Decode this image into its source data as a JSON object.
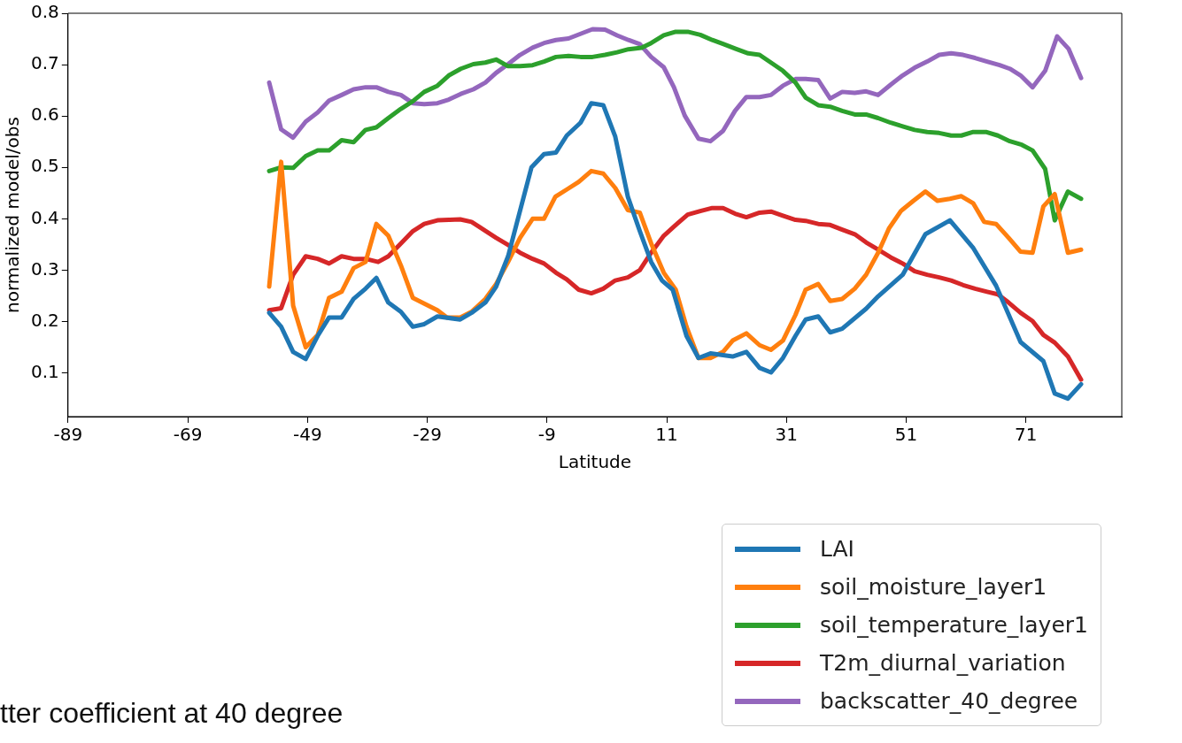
{
  "chart_data": {
    "type": "line",
    "xlabel": "Latitude",
    "ylabel": "normalized model/obs",
    "xlim": [
      -89,
      87
    ],
    "ylim": [
      0.015,
      0.8
    ],
    "xticks": [
      -89,
      -69,
      -49,
      -29,
      -9,
      11,
      31,
      51,
      71
    ],
    "yticks": [
      0.1,
      0.2,
      0.3,
      0.4,
      0.5,
      0.6,
      0.7,
      0.8
    ],
    "grid": false,
    "legend": "bottom right",
    "marker": "none",
    "line_style": "solid",
    "annotations": [
      "tter coefficient at 40 degree"
    ],
    "series": [
      {
        "name": "LAI",
        "color": "#1f77b4",
        "x": [
          -55.4,
          -53.4,
          -51.4,
          -49.3,
          -47.3,
          -45.4,
          -43.3,
          -41.3,
          -39.3,
          -37.5,
          -35.5,
          -33.4,
          -31.4,
          -29.5,
          -27.3,
          -23.5,
          -21.6,
          -19.3,
          -17.5,
          -15.5,
          -11.6,
          -9.5,
          -7.5,
          -5.7,
          -3.4,
          -1.6,
          0.4,
          2.4,
          4.5,
          6.5,
          8.4,
          10.2,
          12,
          14.3,
          16.3,
          18.3,
          22,
          24.3,
          26.5,
          28.4,
          30.4,
          32.5,
          34.2,
          36.3,
          38.3,
          40.3,
          44.3,
          46.3,
          50.4,
          54.2,
          58.3,
          62.2,
          66,
          70.1,
          73.9,
          75.8,
          78,
          80.2
        ],
        "values": [
          0.217,
          0.19,
          0.141,
          0.127,
          0.172,
          0.208,
          0.208,
          0.244,
          0.264,
          0.285,
          0.237,
          0.219,
          0.19,
          0.195,
          0.21,
          0.204,
          0.217,
          0.237,
          0.268,
          0.327,
          0.5,
          0.526,
          0.529,
          0.562,
          0.587,
          0.625,
          0.621,
          0.56,
          0.443,
          0.376,
          0.316,
          0.28,
          0.262,
          0.172,
          0.129,
          0.138,
          0.132,
          0.141,
          0.11,
          0.101,
          0.129,
          0.172,
          0.204,
          0.21,
          0.179,
          0.186,
          0.225,
          0.249,
          0.291,
          0.37,
          0.397,
          0.343,
          0.27,
          0.16,
          0.123,
          0.06,
          0.05,
          0.078
        ]
      },
      {
        "name": "soil_moisture_layer1",
        "color": "#ff7f0e",
        "x": [
          -55.4,
          -53.4,
          -51.4,
          -49.3,
          -47.3,
          -45.4,
          -43.3,
          -41.3,
          -39.3,
          -37.5,
          -35.5,
          -33.4,
          -31.4,
          -29.5,
          -27.3,
          -25.7,
          -23.5,
          -21.6,
          -19.3,
          -17.5,
          -15.5,
          -13.5,
          -11.4,
          -9.5,
          -7.6,
          -5.7,
          -3.7,
          -1.6,
          0.4,
          2.4,
          4.5,
          6.5,
          8.4,
          10.5,
          12.5,
          14.3,
          16.3,
          18.3,
          20.4,
          22,
          24.3,
          26.5,
          28.4,
          30.4,
          32.5,
          34.2,
          36.3,
          38.3,
          40.3,
          42.4,
          44.3,
          46.3,
          48.1,
          50.1,
          52.2,
          54.2,
          56.2,
          58.3,
          60.2,
          62.2,
          64,
          66,
          68.1,
          70.1,
          72.1,
          73.9,
          75.8,
          78,
          80.2
        ],
        "values": [
          0.268,
          0.511,
          0.231,
          0.15,
          0.174,
          0.246,
          0.258,
          0.304,
          0.316,
          0.39,
          0.367,
          0.309,
          0.246,
          0.235,
          0.222,
          0.208,
          0.208,
          0.219,
          0.244,
          0.273,
          0.316,
          0.363,
          0.4,
          0.4,
          0.443,
          0.457,
          0.472,
          0.493,
          0.488,
          0.46,
          0.417,
          0.412,
          0.352,
          0.295,
          0.262,
          0.19,
          0.129,
          0.129,
          0.141,
          0.163,
          0.177,
          0.154,
          0.145,
          0.163,
          0.213,
          0.262,
          0.273,
          0.24,
          0.244,
          0.264,
          0.291,
          0.334,
          0.381,
          0.415,
          0.435,
          0.453,
          0.435,
          0.439,
          0.444,
          0.43,
          0.394,
          0.39,
          0.363,
          0.336,
          0.334,
          0.424,
          0.448,
          0.334,
          0.34
        ]
      },
      {
        "name": "soil_temperature_layer1",
        "color": "#2ca02c",
        "x": [
          -55.4,
          -53.4,
          -51.4,
          -49.3,
          -47.3,
          -45.4,
          -43.3,
          -41.3,
          -39.3,
          -37.5,
          -35.5,
          -33.4,
          -31.4,
          -29.5,
          -27.3,
          -25.4,
          -23.4,
          -21.3,
          -19.3,
          -17.5,
          -15.5,
          -13.5,
          -11.4,
          -9.5,
          -7.5,
          -5.4,
          -3.4,
          -1.4,
          0.7,
          2.7,
          4.6,
          6.8,
          8.4,
          10.5,
          12.5,
          14.5,
          16.6,
          18.6,
          20.5,
          22.5,
          24.6,
          26.5,
          28.4,
          30.4,
          32.5,
          34.2,
          36.3,
          38.3,
          40.3,
          42.4,
          44.3,
          46.3,
          48.4,
          50.4,
          52.4,
          54.5,
          56.5,
          58.5,
          60.2,
          62.2,
          64.3,
          66.3,
          68.3,
          70.3,
          72.1,
          74.2,
          75.8,
          78,
          80.2
        ],
        "values": [
          0.493,
          0.5,
          0.499,
          0.522,
          0.533,
          0.533,
          0.553,
          0.549,
          0.573,
          0.578,
          0.596,
          0.614,
          0.629,
          0.647,
          0.659,
          0.679,
          0.692,
          0.701,
          0.704,
          0.71,
          0.697,
          0.697,
          0.699,
          0.706,
          0.715,
          0.717,
          0.715,
          0.715,
          0.719,
          0.724,
          0.73,
          0.733,
          0.742,
          0.757,
          0.764,
          0.764,
          0.758,
          0.748,
          0.74,
          0.731,
          0.722,
          0.719,
          0.704,
          0.688,
          0.665,
          0.636,
          0.621,
          0.618,
          0.61,
          0.603,
          0.603,
          0.596,
          0.587,
          0.58,
          0.573,
          0.569,
          0.567,
          0.562,
          0.562,
          0.569,
          0.569,
          0.562,
          0.551,
          0.544,
          0.533,
          0.497,
          0.397,
          0.453,
          0.439
        ]
      },
      {
        "name": "T2m_diurnal_variation",
        "color": "#d62728",
        "x": [
          -55.4,
          -53.4,
          -51.4,
          -49.3,
          -47.3,
          -45.4,
          -43.3,
          -41.3,
          -39.3,
          -37.2,
          -35.5,
          -33.4,
          -31.4,
          -29.5,
          -27.3,
          -25.4,
          -23.5,
          -21.6,
          -19.6,
          -17.5,
          -15.5,
          -13.5,
          -11.4,
          -9.5,
          -7.5,
          -5.7,
          -3.7,
          -1.6,
          0.4,
          2.4,
          4.5,
          6.5,
          8.4,
          10.5,
          12.5,
          14.5,
          16.6,
          18.6,
          20.4,
          22.4,
          24.3,
          26.5,
          28.4,
          30.4,
          32.5,
          34.2,
          36.3,
          38.3,
          40.3,
          42.4,
          44.3,
          46.3,
          48.4,
          50.4,
          52.4,
          54.5,
          56.5,
          58.5,
          60.5,
          62.5,
          64.5,
          66.3,
          68.1,
          70.1,
          72.1,
          73.9,
          75.8,
          78,
          80.2
        ],
        "values": [
          0.222,
          0.226,
          0.291,
          0.327,
          0.322,
          0.313,
          0.327,
          0.322,
          0.322,
          0.316,
          0.327,
          0.352,
          0.376,
          0.39,
          0.397,
          0.398,
          0.399,
          0.394,
          0.379,
          0.363,
          0.349,
          0.334,
          0.322,
          0.313,
          0.295,
          0.282,
          0.262,
          0.255,
          0.264,
          0.28,
          0.286,
          0.3,
          0.334,
          0.367,
          0.388,
          0.408,
          0.415,
          0.421,
          0.421,
          0.41,
          0.403,
          0.412,
          0.414,
          0.406,
          0.398,
          0.396,
          0.39,
          0.388,
          0.379,
          0.37,
          0.354,
          0.34,
          0.325,
          0.313,
          0.298,
          0.291,
          0.286,
          0.28,
          0.271,
          0.264,
          0.258,
          0.253,
          0.237,
          0.217,
          0.201,
          0.174,
          0.159,
          0.132,
          0.087
        ]
      },
      {
        "name": "backscatter_40_degree",
        "color": "#9467bd",
        "x": [
          -55.4,
          -53.4,
          -51.4,
          -49.3,
          -47.3,
          -45.4,
          -43.3,
          -41.3,
          -39.3,
          -37.5,
          -35.5,
          -33.4,
          -31.4,
          -29.5,
          -27.3,
          -25.4,
          -23.4,
          -21.3,
          -19.3,
          -17.5,
          -15.5,
          -13.5,
          -11.4,
          -9.5,
          -7.5,
          -5.4,
          -3.4,
          -1.4,
          0.7,
          2.7,
          4.6,
          6.5,
          8.4,
          10.5,
          12.2,
          14,
          16.3,
          18.3,
          20.4,
          22.4,
          24.3,
          26.5,
          28.4,
          30.4,
          32.5,
          34.2,
          36.3,
          38.3,
          40.3,
          42.4,
          44.3,
          46.3,
          48.4,
          50.4,
          52.4,
          54.5,
          56.5,
          58.5,
          60.5,
          62.5,
          64.5,
          66.6,
          68.3,
          70.1,
          72.1,
          74.2,
          76.2,
          78.1,
          80.2
        ],
        "values": [
          0.665,
          0.574,
          0.558,
          0.589,
          0.607,
          0.63,
          0.641,
          0.652,
          0.656,
          0.656,
          0.647,
          0.641,
          0.625,
          0.623,
          0.625,
          0.632,
          0.643,
          0.652,
          0.665,
          0.684,
          0.701,
          0.719,
          0.733,
          0.742,
          0.748,
          0.751,
          0.76,
          0.769,
          0.768,
          0.757,
          0.748,
          0.74,
          0.715,
          0.695,
          0.656,
          0.601,
          0.556,
          0.551,
          0.571,
          0.61,
          0.637,
          0.637,
          0.641,
          0.659,
          0.672,
          0.672,
          0.67,
          0.634,
          0.647,
          0.645,
          0.648,
          0.641,
          0.661,
          0.679,
          0.694,
          0.706,
          0.719,
          0.722,
          0.719,
          0.713,
          0.706,
          0.699,
          0.692,
          0.679,
          0.656,
          0.688,
          0.755,
          0.731,
          0.674
        ]
      }
    ]
  }
}
